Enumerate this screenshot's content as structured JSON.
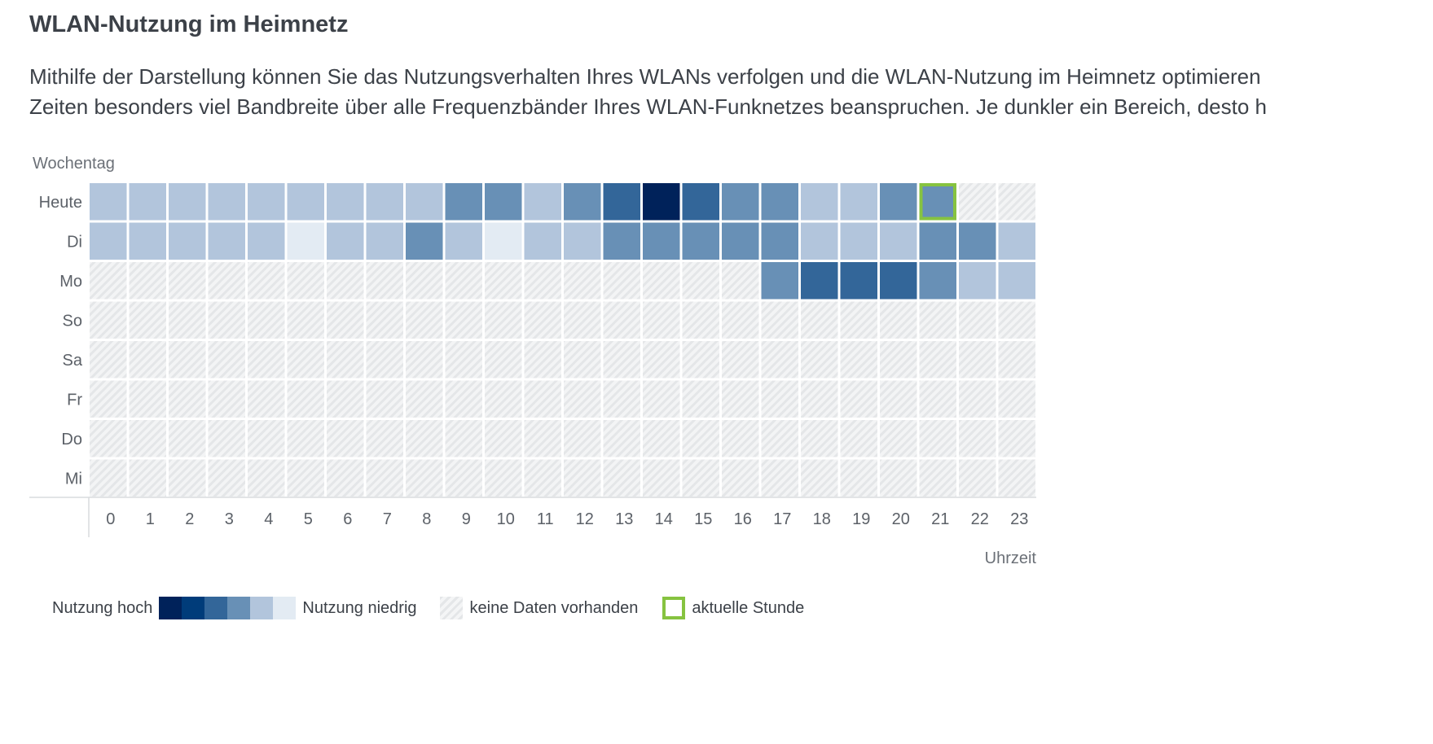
{
  "page": {
    "title": "WLAN-Nutzung im Heimnetz",
    "description": "Mithilfe der Darstellung können Sie das Nutzungsverhalten Ihres WLANs verfolgen und die WLAN-Nutzung im Heimnetz optimieren\nZeiten besonders viel Bandbreite über alle Frequenzbänder Ihres WLAN-Funknetzes beanspruchen. Je dunkler ein Bereich, desto h"
  },
  "chart_data": {
    "type": "heatmap",
    "title": "",
    "xlabel": "Uhrzeit",
    "ylabel": "Wochentag",
    "x": [
      0,
      1,
      2,
      3,
      4,
      5,
      6,
      7,
      8,
      9,
      10,
      11,
      12,
      13,
      14,
      15,
      16,
      17,
      18,
      19,
      20,
      21,
      22,
      23
    ],
    "y": [
      "Heute",
      "Di",
      "Mo",
      "So",
      "Sa",
      "Fr",
      "Do",
      "Mi"
    ],
    "value_scale_note": "usage level 1 (niedrig) to 6 (hoch); null = keine Daten vorhanden",
    "values": [
      [
        2,
        2,
        2,
        2,
        2,
        2,
        2,
        2,
        2,
        3,
        3,
        2,
        3,
        4,
        6,
        4,
        3,
        3,
        2,
        2,
        3,
        3,
        null,
        null
      ],
      [
        2,
        2,
        2,
        2,
        2,
        1,
        2,
        2,
        3,
        2,
        1,
        2,
        2,
        3,
        3,
        3,
        3,
        3,
        2,
        2,
        2,
        3,
        3,
        2
      ],
      [
        null,
        null,
        null,
        null,
        null,
        null,
        null,
        null,
        null,
        null,
        null,
        null,
        null,
        null,
        null,
        null,
        null,
        3,
        4,
        4,
        4,
        3,
        2,
        2
      ],
      [
        null,
        null,
        null,
        null,
        null,
        null,
        null,
        null,
        null,
        null,
        null,
        null,
        null,
        null,
        null,
        null,
        null,
        null,
        null,
        null,
        null,
        null,
        null,
        null
      ],
      [
        null,
        null,
        null,
        null,
        null,
        null,
        null,
        null,
        null,
        null,
        null,
        null,
        null,
        null,
        null,
        null,
        null,
        null,
        null,
        null,
        null,
        null,
        null,
        null
      ],
      [
        null,
        null,
        null,
        null,
        null,
        null,
        null,
        null,
        null,
        null,
        null,
        null,
        null,
        null,
        null,
        null,
        null,
        null,
        null,
        null,
        null,
        null,
        null,
        null
      ],
      [
        null,
        null,
        null,
        null,
        null,
        null,
        null,
        null,
        null,
        null,
        null,
        null,
        null,
        null,
        null,
        null,
        null,
        null,
        null,
        null,
        null,
        null,
        null,
        null
      ],
      [
        null,
        null,
        null,
        null,
        null,
        null,
        null,
        null,
        null,
        null,
        null,
        null,
        null,
        null,
        null,
        null,
        null,
        null,
        null,
        null,
        null,
        null,
        null,
        null
      ]
    ],
    "current_hour": {
      "row": "Heute",
      "hour": 21
    },
    "colors": {
      "levels": [
        "#e3ebf3",
        "#b2c5dc",
        "#6890b6",
        "#336699",
        "#003c7a",
        "#00225a"
      ],
      "no_data": "#eeeff0",
      "current_hour_border": "#86c340"
    },
    "legend": {
      "high_label": "Nutzung hoch",
      "low_label": "Nutzung niedrig",
      "no_data_label": "keine Daten vorhanden",
      "current_label": "aktuelle Stunde"
    }
  }
}
